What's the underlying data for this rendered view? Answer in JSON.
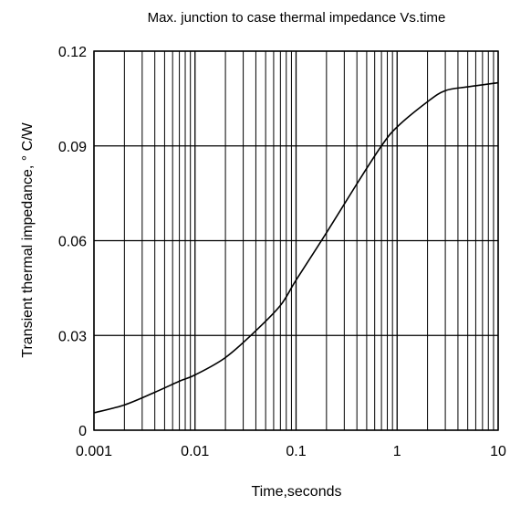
{
  "chart_data": {
    "type": "line",
    "title": "Max. junction to case thermal impedance Vs.time",
    "xlabel": "Time,seconds",
    "ylabel": "Transient thermal impedance, ° C/W",
    "x_scale": "log",
    "xlim": [
      0.001,
      10
    ],
    "ylim": [
      0,
      0.12
    ],
    "x_ticks": [
      0.001,
      0.01,
      0.1,
      1,
      10
    ],
    "x_tick_labels": [
      "0.001",
      "0.01",
      "0.1",
      "1",
      "10"
    ],
    "y_ticks": [
      0,
      0.03,
      0.06,
      0.09,
      0.12
    ],
    "y_tick_labels": [
      "0",
      "0.03",
      "0.06",
      "0.09",
      "0.12"
    ],
    "grid": true,
    "series": [
      {
        "x": [
          0.001,
          0.002,
          0.004,
          0.007,
          0.01,
          0.02,
          0.04,
          0.07,
          0.1,
          0.2,
          0.4,
          0.7,
          1,
          2,
          3,
          5,
          10
        ],
        "y": [
          0.0055,
          0.008,
          0.012,
          0.0155,
          0.0175,
          0.023,
          0.0315,
          0.0395,
          0.0475,
          0.0625,
          0.078,
          0.09,
          0.096,
          0.104,
          0.1075,
          0.1087,
          0.11
        ]
      }
    ],
    "colors": {
      "line": "#000000",
      "grid": "#000000",
      "background": "#ffffff"
    }
  }
}
